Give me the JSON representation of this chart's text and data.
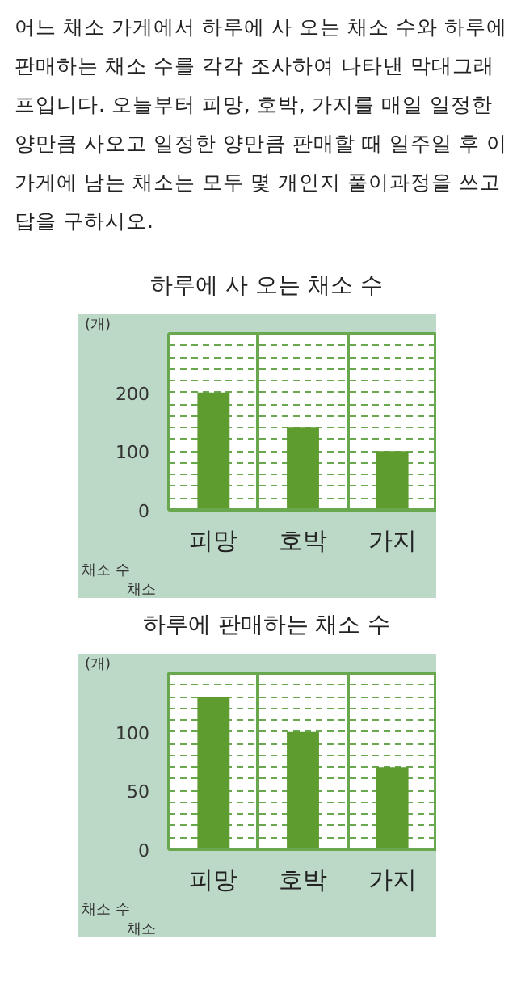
{
  "chart_data": [
    {
      "type": "other",
      "annotations": [
        "어느 채소 가게에서 하루에 사 오는 채소 수와 하루에 판매하는 채소 수를 각각 조사하여 나타낸 막대그래프입니다. 오늘부터 피망, 호박, 가지를 매일 일정한 양만큼 사오고 일정한 양만큼 판매할 때 일주일 후 이 가게에 남는 채소는 모두 몇 개인지 풀이과정을 쓰고 답을 구하시오."
      ]
    },
    {
      "type": "bar",
      "title": "하루에 사 오는 채소 수",
      "ylabel": "(개)",
      "xlabel": "채소",
      "annotations": [
        "채소 수"
      ],
      "categories": [
        "피망",
        "호박",
        "가지"
      ],
      "values": [
        200,
        140,
        100
      ],
      "color": "#5e9c2f",
      "ylim": [
        0,
        300
      ],
      "yticks": [
        0,
        {
          "value": 20,
          "label": null
        },
        {
          "value": 40,
          "label": null
        },
        {
          "value": 60,
          "label": null
        },
        {
          "value": 80,
          "label": null
        },
        100,
        {
          "value": 120,
          "label": null
        },
        {
          "value": 140,
          "label": null
        },
        {
          "value": 160,
          "label": null
        },
        {
          "value": 180,
          "label": null
        },
        200,
        {
          "value": 220,
          "label": null
        },
        {
          "value": 240,
          "label": null
        },
        {
          "value": 260,
          "label": null
        },
        {
          "value": 280,
          "label": null
        }
      ],
      "grid": true
    },
    {
      "type": "bar",
      "title": "하루에 판매하는 채소 수",
      "ylabel": "(개)",
      "xlabel": "채소",
      "annotations": [
        "채소 수"
      ],
      "categories": [
        "피망",
        "호박",
        "가지"
      ],
      "values": [
        130,
        100,
        70
      ],
      "color": "#5e9c2f",
      "ylim": [
        0,
        150
      ],
      "yticks": [
        0,
        {
          "value": 10,
          "label": null
        },
        {
          "value": 20,
          "label": null
        },
        {
          "value": 30,
          "label": null
        },
        {
          "value": 40,
          "label": null
        },
        50,
        {
          "value": 60,
          "label": null
        },
        {
          "value": 70,
          "label": null
        },
        {
          "value": 80,
          "label": null
        },
        {
          "value": 90,
          "label": null
        },
        100,
        {
          "value": 110,
          "label": null
        },
        {
          "value": 120,
          "label": null
        },
        {
          "value": 130,
          "label": null
        },
        {
          "value": 140,
          "label": null
        }
      ],
      "grid": true
    }
  ]
}
